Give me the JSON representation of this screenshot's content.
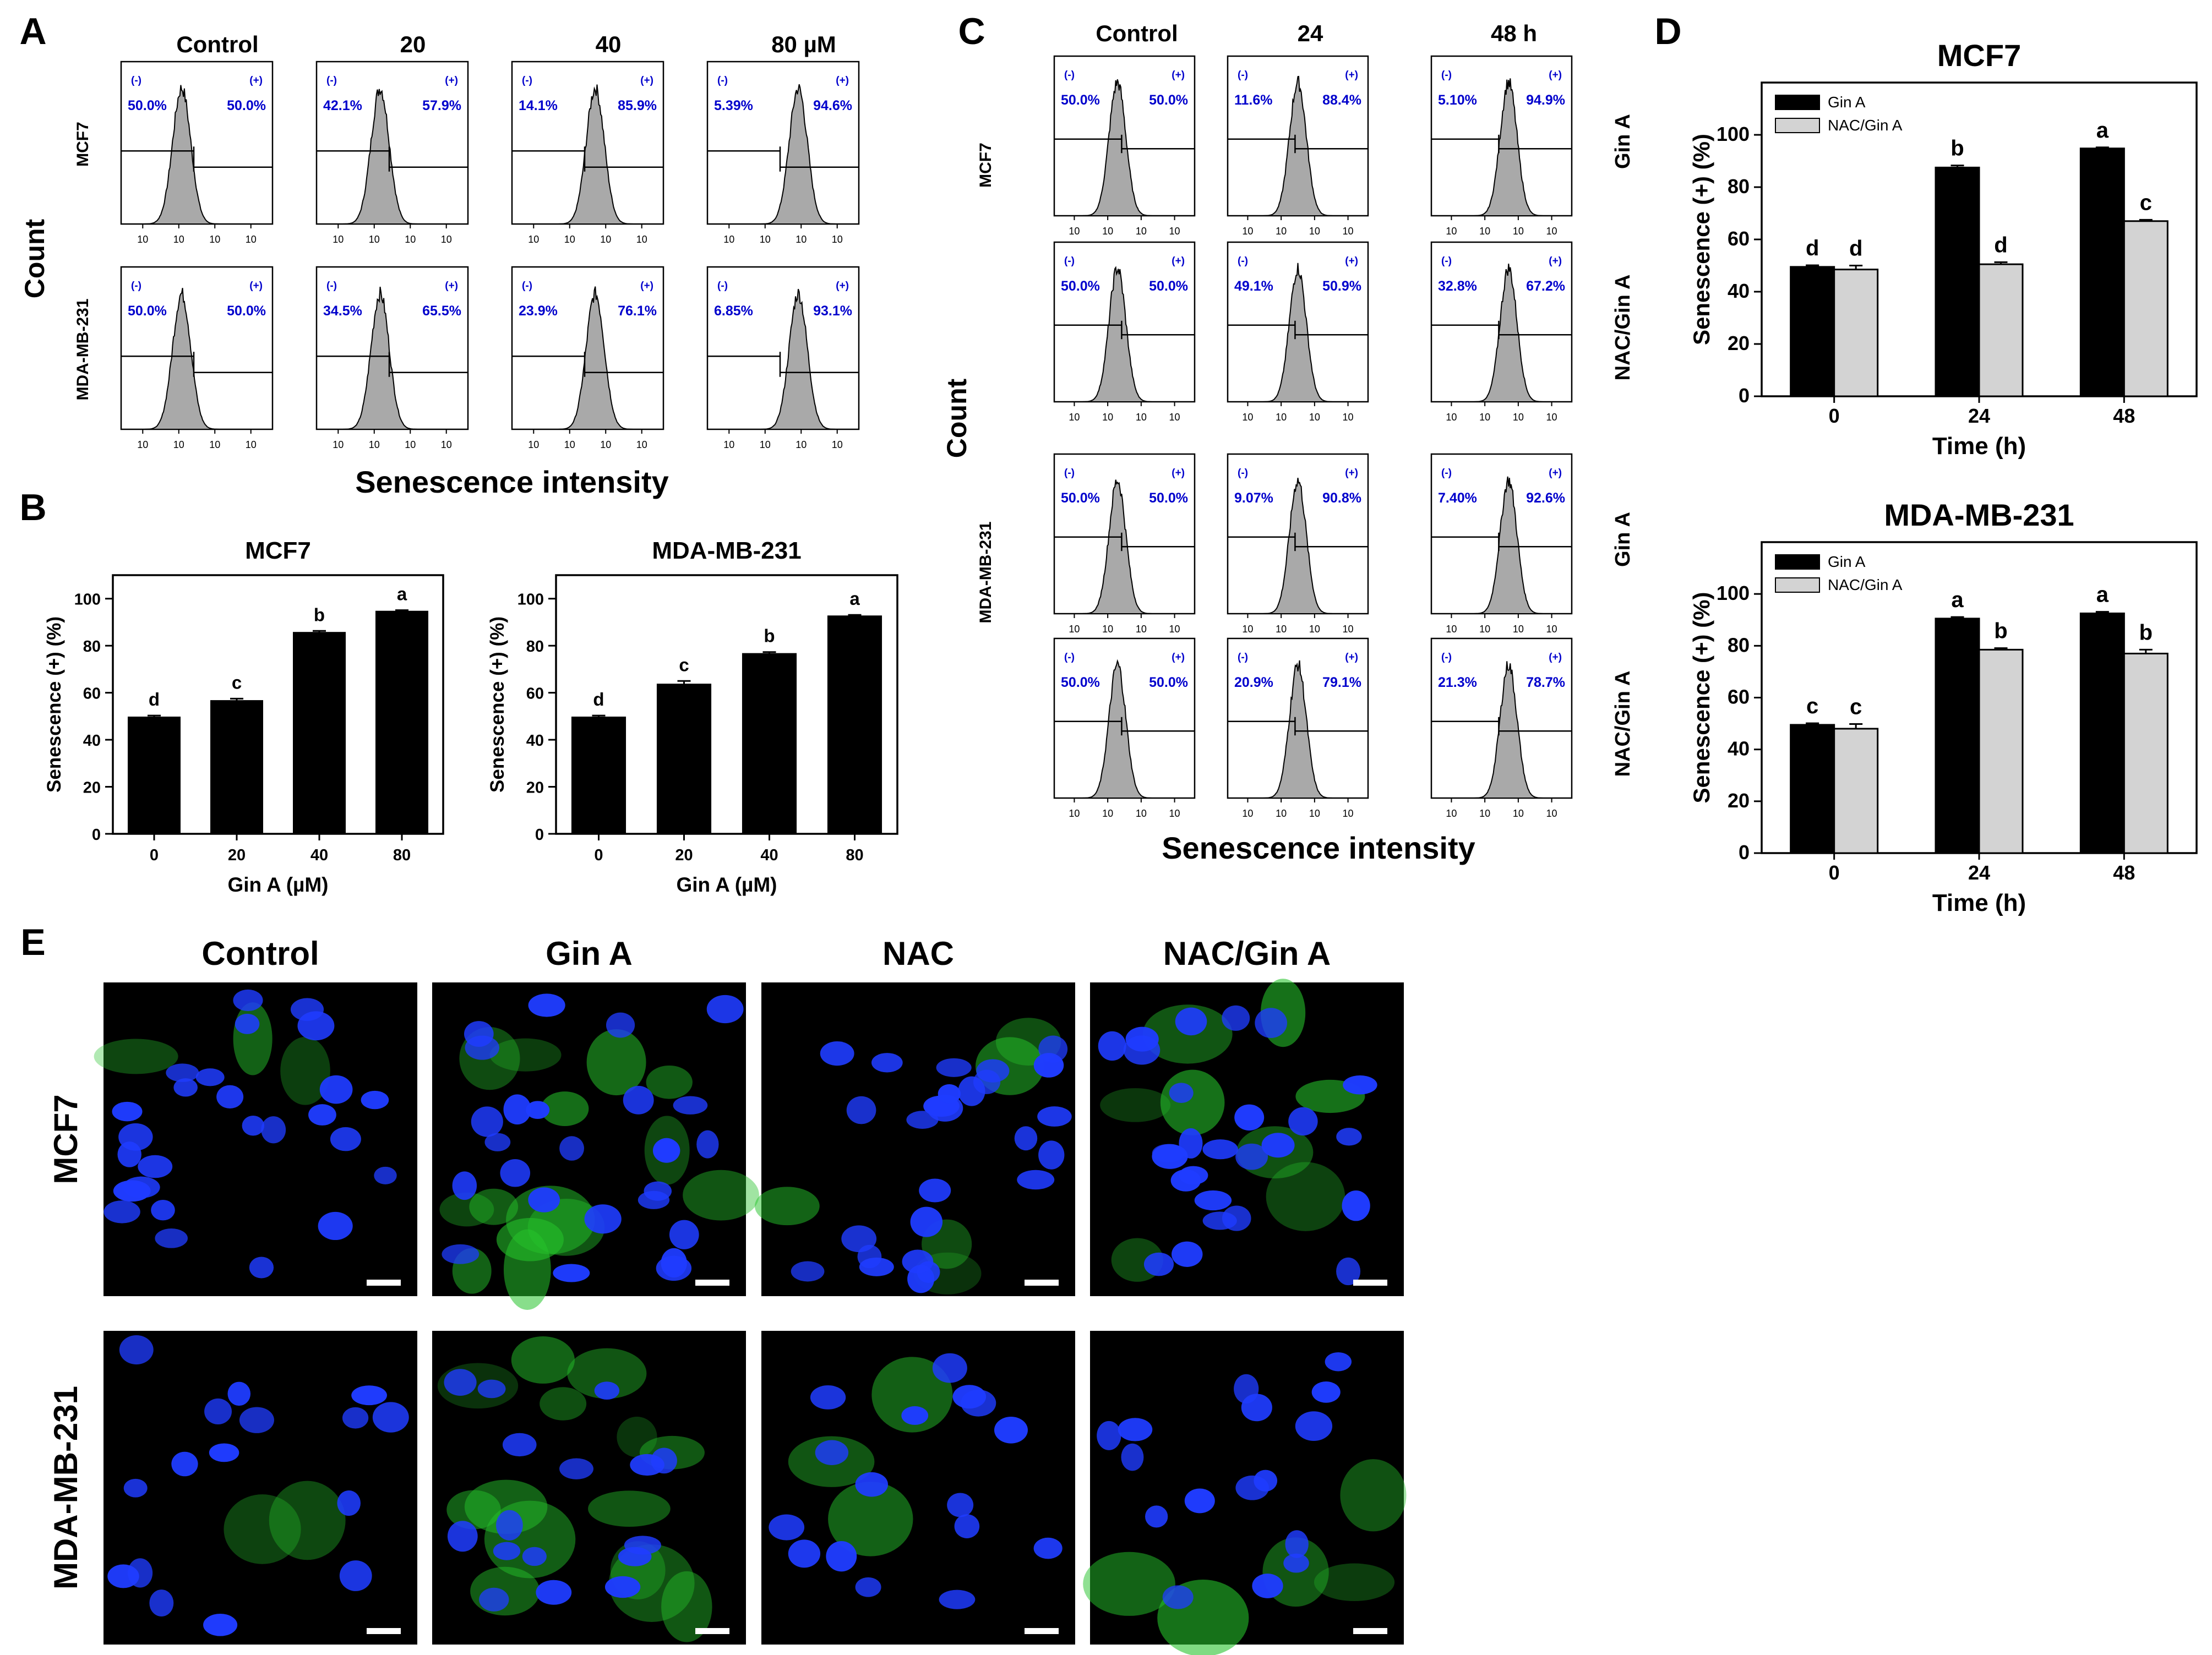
{
  "colors": {
    "black": "#000000",
    "gray_bar": "#d3d3d3",
    "blue_text": "#0000cc",
    "hist_fill": "#a9a9a9",
    "nuclei": "#1f3cff",
    "marker": "#26c22b"
  },
  "panel_letters": [
    "A",
    "B",
    "C",
    "D",
    "E"
  ],
  "panel_a": {
    "col_headers": [
      "Control",
      "20",
      "40",
      "80 µM"
    ],
    "row_labels": [
      "MCF7",
      "MDA-MB-231"
    ],
    "y_label": "Count",
    "x_label": "Senescence intensity",
    "gate_neg": "(-)",
    "gate_pos": "(+)",
    "x_ticks": [
      "10¹",
      "10²",
      "10³",
      "10⁴"
    ],
    "y_ticks": [
      "0",
      "10",
      "20",
      "30",
      "40",
      "50",
      "60",
      "70",
      "80",
      "90",
      "100"
    ],
    "values": [
      [
        [
          "50.0%",
          "50.0%"
        ],
        [
          "42.1%",
          "57.9%"
        ],
        [
          "14.1%",
          "85.9%"
        ],
        [
          "5.39%",
          "94.6%"
        ]
      ],
      [
        [
          "50.0%",
          "50.0%"
        ],
        [
          "34.5%",
          "65.5%"
        ],
        [
          "23.9%",
          "76.1%"
        ],
        [
          "6.85%",
          "93.1%"
        ]
      ]
    ]
  },
  "panel_c": {
    "col_headers": [
      "Control",
      "24",
      "48 h"
    ],
    "row_groups": [
      "MCF7",
      "MDA-MB-231"
    ],
    "row_treatments": [
      "Gin A",
      "NAC/Gin A",
      "Gin A",
      "NAC/Gin A"
    ],
    "y_label": "Count",
    "x_label": "Senescence intensity",
    "gate_neg": "(-)",
    "gate_pos": "(+)",
    "x_ticks": [
      "10¹",
      "10²",
      "10³",
      "10⁴"
    ],
    "y_ticks": [
      "0",
      "50",
      "100",
      "150",
      "200"
    ],
    "values": [
      [
        [
          "50.0%",
          "50.0%"
        ],
        [
          "11.6%",
          "88.4%"
        ],
        [
          "5.10%",
          "94.9%"
        ]
      ],
      [
        [
          "50.0%",
          "50.0%"
        ],
        [
          "49.1%",
          "50.9%"
        ],
        [
          "32.8%",
          "67.2%"
        ]
      ],
      [
        [
          "50.0%",
          "50.0%"
        ],
        [
          "9.07%",
          "90.8%"
        ],
        [
          "7.40%",
          "92.6%"
        ]
      ],
      [
        [
          "50.0%",
          "50.0%"
        ],
        [
          "20.9%",
          "79.1%"
        ],
        [
          "21.3%",
          "78.7%"
        ]
      ]
    ]
  },
  "panel_e": {
    "col_headers": [
      "Control",
      "Gin A",
      "NAC",
      "NAC/Gin A"
    ],
    "row_labels": [
      "MCF7",
      "MDA-MB-231"
    ]
  },
  "chart_data": [
    {
      "type": "bar",
      "title": "MCF7",
      "categories": [
        "0",
        "20",
        "40",
        "80"
      ],
      "values": [
        49.5,
        56.5,
        85.5,
        94.5
      ],
      "errors": [
        0.8,
        1.0,
        0.8,
        0.6
      ],
      "letters": [
        "d",
        "c",
        "b",
        "a"
      ],
      "xlabel": "Gin A (µM)",
      "ylabel": "Senescence (+) (%)",
      "ylim": [
        0,
        110
      ],
      "yticks": [
        "0",
        "20",
        "40",
        "60",
        "80",
        "100"
      ]
    },
    {
      "type": "bar",
      "title": "MDA-MB-231",
      "categories": [
        "0",
        "20",
        "40",
        "80"
      ],
      "values": [
        49.5,
        63.5,
        76.5,
        92.5
      ],
      "errors": [
        0.8,
        1.5,
        0.8,
        0.6
      ],
      "letters": [
        "d",
        "c",
        "b",
        "a"
      ],
      "xlabel": "Gin A (µM)",
      "ylabel": "Senescence (+) (%)",
      "ylim": [
        0,
        110
      ],
      "yticks": [
        "0",
        "20",
        "40",
        "60",
        "80",
        "100"
      ]
    },
    {
      "type": "bar",
      "title": "MCF7",
      "categories": [
        "0",
        "24",
        "48"
      ],
      "series": [
        {
          "name": "Gin A",
          "values": [
            49.5,
            87.5,
            94.8
          ],
          "errors": [
            0.6,
            0.8,
            0.4
          ],
          "letters": [
            "d",
            "b",
            "a"
          ]
        },
        {
          "name": "NAC/Gin A",
          "values": [
            48.5,
            50.5,
            67
          ],
          "errors": [
            1.5,
            0.8,
            0.5
          ],
          "letters": [
            "d",
            "d",
            "c"
          ]
        }
      ],
      "xlabel": "Time (h)",
      "ylabel": "Senescence (+) (%)",
      "ylim": [
        0,
        120
      ],
      "yticks": [
        "0",
        "20",
        "40",
        "60",
        "80",
        "100"
      ],
      "legend": "top-left"
    },
    {
      "type": "bar",
      "title": "MDA-MB-231",
      "categories": [
        "0",
        "24",
        "48"
      ],
      "series": [
        {
          "name": "Gin A",
          "values": [
            49.5,
            90.5,
            92.5
          ],
          "errors": [
            0.6,
            0.6,
            0.6
          ],
          "letters": [
            "c",
            "a",
            "a"
          ]
        },
        {
          "name": "NAC/Gin A",
          "values": [
            48,
            78.5,
            77
          ],
          "errors": [
            1.8,
            0.6,
            1.5
          ],
          "letters": [
            "c",
            "b",
            "b"
          ]
        }
      ],
      "xlabel": "Time (h)",
      "ylabel": "Senescence (+) (%)",
      "ylim": [
        0,
        120
      ],
      "yticks": [
        "0",
        "20",
        "40",
        "60",
        "80",
        "100"
      ],
      "legend": "top-left"
    }
  ]
}
